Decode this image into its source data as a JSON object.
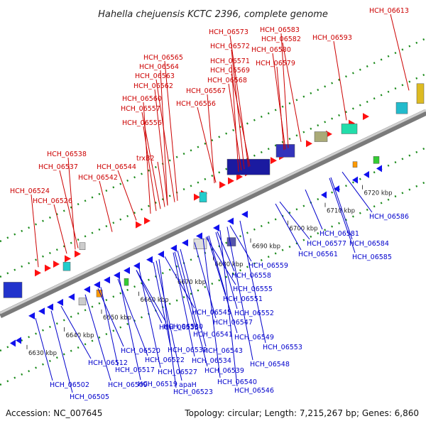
{
  "title": "Hahella chejuensis KCTC 2396, complete genome",
  "footer": {
    "accession": "Accession: NC_007645",
    "summary": "Topology: circular; Length: 7,215,267 bp; Genes: 6,860"
  },
  "colors": {
    "forward_label": "#cc0000",
    "reverse_label": "#0000cc",
    "forward_gene": "#ff1111",
    "reverse_gene": "#1111ee",
    "backbone": "#999999",
    "dots": "#1a8a1a"
  },
  "scale_ticks": [
    "6630 kbp",
    "6640 kbp",
    "6650 kbp",
    "6660 kbp",
    "6670 kbp",
    "6680 kbp",
    "6690 kbp",
    "6700 kbp",
    "6710 kbp",
    "6720 kbp"
  ],
  "forward_genes": [
    "HCH_06524",
    "HCH_06526",
    "HCH_06537",
    "HCH_06538",
    "HCH_06542",
    "HCH_06544",
    "trxB2",
    "HCH_06556",
    "HCH_06557",
    "HCH_06560",
    "HCH_06562",
    "HCH_06563",
    "HCH_06564",
    "HCH_06565",
    "HCH_06566",
    "HCH_06567",
    "HCH_06568",
    "HCH_06569",
    "HCH_06571",
    "HCH_06572",
    "HCH_06573",
    "HCH_06579",
    "HCH_06580",
    "HCH_06582",
    "HCH_06583",
    "HCH_06593",
    "HCH_06613"
  ],
  "reverse_genes": [
    "HCH_06502",
    "HCH_06505",
    "HCH_06509",
    "HCH_06512",
    "HCH_06517",
    "HCH_06519",
    "HCH_06520",
    "HCH_06522",
    "HCH_06523",
    "HCH_06527",
    "apaH",
    "HCH_06530",
    "HCH_06532",
    "HCH_06534",
    "HCH_06536",
    "HCH_06539",
    "HCH_06540",
    "HCH_06541",
    "HCH_06543",
    "HCH_06545",
    "HCH_06546",
    "HCH_06547",
    "HCH_06548",
    "HCH_06549",
    "HCH_06551",
    "HCH_06552",
    "HCH_06553",
    "HCH_06555",
    "HCH_06558",
    "HCH_06559",
    "HCH_06561",
    "HCH_06577",
    "HCH_06581",
    "HCH_06584",
    "HCH_06585",
    "HCH_06586"
  ]
}
